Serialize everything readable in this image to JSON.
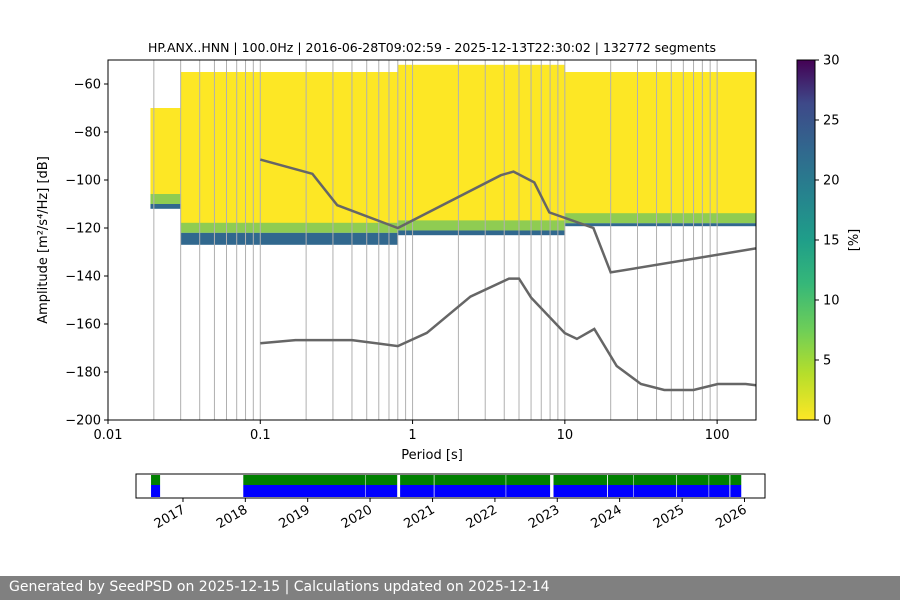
{
  "chart_data": [
    {
      "type": "heatmap",
      "title": "HP.ANX..HNN | 100.0Hz | 2016-06-28T09:02:59 - 2025-12-13T22:30:02 | 132772 segments",
      "xlabel": "Period [s]",
      "ylabel": "Amplitude [m²/s⁴/Hz] [dB]",
      "x_scale": "log",
      "xlim": [
        0.01,
        180
      ],
      "ylim": [
        -200,
        -50
      ],
      "x_ticks": [
        {
          "value": 0.01,
          "label": "0.01"
        },
        {
          "value": 0.1,
          "label": "0.1"
        },
        {
          "value": 1,
          "label": "1"
        },
        {
          "value": 10,
          "label": "10"
        },
        {
          "value": 100,
          "label": "100"
        }
      ],
      "y_ticks": [
        -60,
        -80,
        -100,
        -120,
        -140,
        -160,
        -180,
        -200
      ],
      "colorbar": {
        "label": "[%]",
        "range": [
          0,
          30
        ],
        "ticks": [
          0,
          5,
          10,
          15,
          20,
          25,
          30
        ],
        "colormap": "viridis_r"
      },
      "density_bands": [
        {
          "period": [
            0.019,
            0.03
          ],
          "top": -70,
          "bottom": -110,
          "min_level": -112
        },
        {
          "period": [
            0.03,
            0.8
          ],
          "top": -55,
          "bottom": -122,
          "min_level": -127
        },
        {
          "period": [
            0.8,
            10
          ],
          "top": -52,
          "bottom": -121,
          "min_level": -123
        },
        {
          "period": [
            10,
            180
          ],
          "top": -55,
          "bottom": -118,
          "min_level": -116
        }
      ],
      "vertical_gridlines": [
        0.02,
        0.03,
        0.04,
        0.05,
        0.06,
        0.07,
        0.08,
        0.09,
        0.1,
        0.2,
        0.3,
        0.4,
        0.5,
        0.6,
        0.7,
        0.8,
        0.9,
        1,
        2,
        3,
        4,
        5,
        6,
        7,
        8,
        9,
        10,
        20,
        30,
        40,
        50,
        60,
        70,
        80,
        90,
        100,
        200
      ],
      "series": [
        {
          "name": "NHNM",
          "color": "#666666",
          "x": [
            0.1,
            0.22,
            0.32,
            0.8,
            3.8,
            4.6,
            6.3,
            7.9,
            15.4,
            20,
            180
          ],
          "y": [
            -91.5,
            -97.4,
            -110.5,
            -120,
            -98,
            -96.5,
            -101,
            -113.5,
            -120,
            -138.5,
            -128.5
          ]
        },
        {
          "name": "NLNM",
          "color": "#666666",
          "x": [
            0.1,
            0.17,
            0.4,
            0.8,
            1.24,
            2.4,
            4.3,
            5,
            6,
            10,
            12,
            15.6,
            21.9,
            31.6,
            45,
            70,
            101,
            154,
            180
          ],
          "y": [
            -168,
            -166.7,
            -166.7,
            -169.2,
            -163.7,
            -148.6,
            -141.1,
            -141.1,
            -149,
            -163.8,
            -166.2,
            -162.1,
            -177.5,
            -185,
            -187.5,
            -187.5,
            -185,
            -185,
            -185.5
          ]
        }
      ]
    },
    {
      "type": "area",
      "title": "",
      "x_ticks": [
        "2017",
        "2018",
        "2019",
        "2020",
        "2021",
        "2022",
        "2023",
        "2024",
        "2025",
        "2026"
      ],
      "xlim": [
        "2016-04-01",
        "2026-05-01"
      ],
      "series": [
        {
          "name": "",
          "color": "#008000",
          "role": "top-strip"
        },
        {
          "name": "",
          "color": "#0000ff",
          "role": "bottom-strip"
        }
      ],
      "coverage_periods": [
        [
          "2016-06-28",
          "2016-08-20"
        ],
        [
          "2017-12-20",
          "2019-12-05"
        ],
        [
          "2019-12-08",
          "2020-06-08"
        ],
        [
          "2020-06-25",
          "2021-01-08"
        ],
        [
          "2021-01-12",
          "2022-03-05"
        ],
        [
          "2022-03-08",
          "2022-11-20"
        ],
        [
          "2022-12-10",
          "2023-10-20"
        ],
        [
          "2023-10-25",
          "2024-03-20"
        ],
        [
          "2024-03-23",
          "2024-11-28"
        ],
        [
          "2024-12-02",
          "2025-06-05"
        ],
        [
          "2025-06-08",
          "2025-10-05"
        ],
        [
          "2025-10-10",
          "2025-12-13"
        ]
      ]
    }
  ],
  "footer": {
    "text": "Generated by SeedPSD on 2025-12-15 | Calculations updated on 2025-12-14"
  }
}
